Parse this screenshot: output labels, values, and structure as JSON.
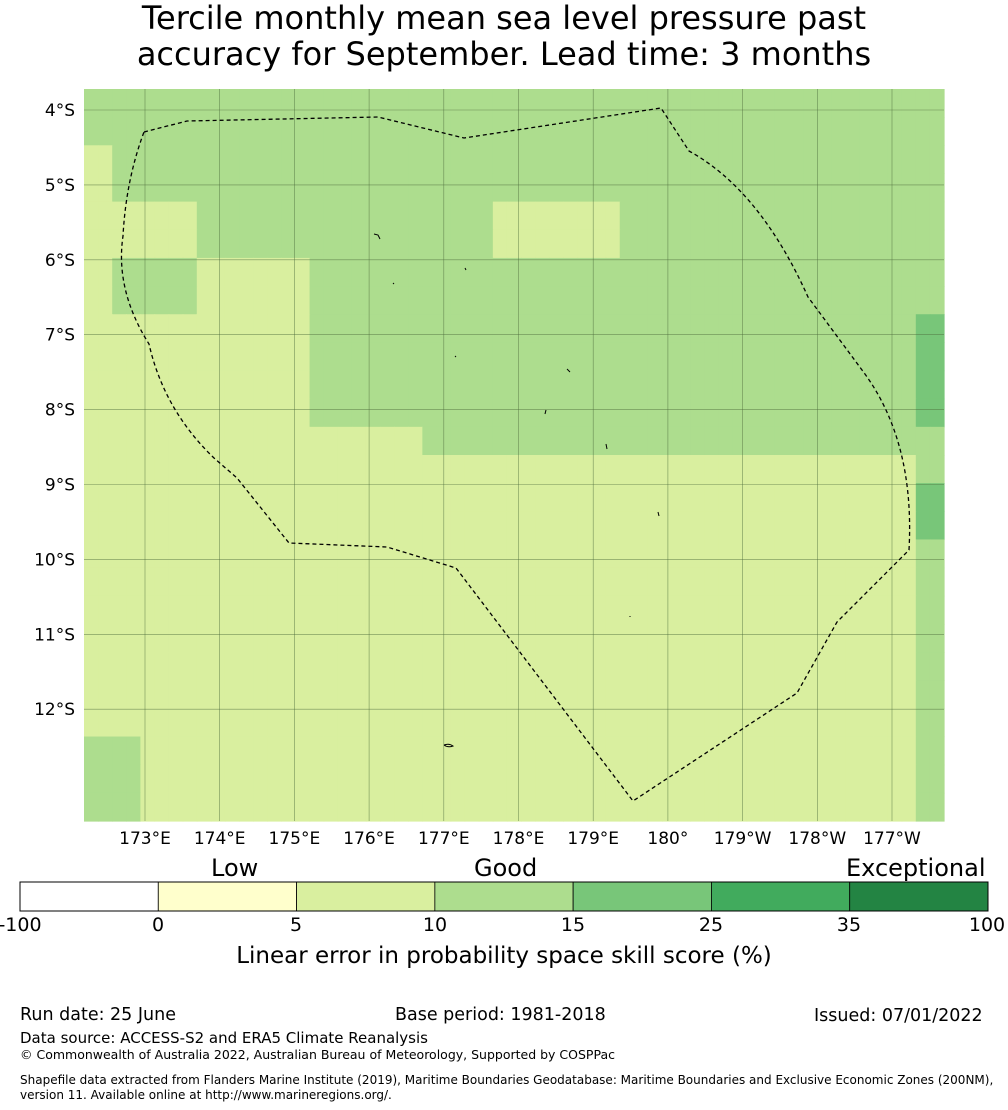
{
  "title_line1": "Tercile monthly mean sea level pressure past",
  "title_line2": "accuracy for September. Lead time: 3 months",
  "map": {
    "lat_labels": [
      "4°S",
      "5°S",
      "6°S",
      "7°S",
      "8°S",
      "9°S",
      "10°S",
      "11°S",
      "12°S"
    ],
    "lon_labels": [
      "173°E",
      "174°E",
      "175°E",
      "176°E",
      "177°E",
      "178°E",
      "179°E",
      "180°",
      "179°W",
      "178°W",
      "177°W"
    ],
    "boundary": "dashed",
    "cells": [
      [
        3,
        3,
        3,
        3,
        3,
        3,
        3,
        3,
        3,
        3,
        3,
        3,
        3,
        3,
        3,
        3,
        3,
        3,
        3,
        3,
        3,
        3,
        3,
        3,
        3,
        3,
        3,
        3,
        3,
        3,
        3,
        3,
        3,
        3,
        3,
        3,
        3,
        3,
        3,
        3,
        3,
        3,
        3,
        3,
        3,
        3,
        3,
        3,
        3,
        3,
        3,
        3,
        3,
        3,
        3,
        3,
        3,
        3,
        3,
        3,
        3
      ],
      [
        3,
        3,
        3,
        3,
        3,
        3,
        3,
        3,
        3,
        3,
        3,
        3,
        3,
        3,
        3,
        3,
        3,
        3,
        3,
        3,
        3,
        3,
        3,
        3,
        3,
        3,
        3,
        3,
        3,
        3,
        3,
        3,
        3,
        3,
        3,
        3,
        3,
        3,
        3,
        3,
        3,
        3,
        3,
        3,
        3,
        3,
        3,
        3,
        3,
        3,
        3,
        3,
        3,
        3,
        3,
        3,
        3,
        3,
        3,
        3,
        3
      ],
      [
        2,
        2,
        3,
        3,
        3,
        3,
        3,
        3,
        3,
        3,
        3,
        3,
        3,
        3,
        3,
        3,
        3,
        3,
        3,
        3,
        3,
        3,
        3,
        3,
        3,
        3,
        3,
        3,
        3,
        3,
        3,
        3,
        3,
        3,
        3,
        3,
        3,
        3,
        3,
        3,
        3,
        3,
        3,
        3,
        3,
        3,
        3,
        3,
        3,
        3,
        3,
        3,
        3,
        3,
        3,
        3,
        3,
        3,
        3,
        3,
        3
      ],
      [
        2,
        2,
        3,
        3,
        3,
        3,
        3,
        3,
        3,
        3,
        3,
        3,
        3,
        3,
        3,
        3,
        3,
        3,
        3,
        3,
        3,
        3,
        3,
        3,
        3,
        3,
        3,
        3,
        3,
        3,
        3,
        3,
        3,
        3,
        3,
        3,
        3,
        3,
        3,
        3,
        3,
        3,
        3,
        3,
        3,
        3,
        3,
        3,
        3,
        3,
        3,
        3,
        3,
        3,
        3,
        3,
        3,
        3,
        3,
        3,
        3
      ],
      [
        2,
        2,
        2,
        2,
        2,
        2,
        2,
        2,
        3,
        3,
        3,
        3,
        3,
        3,
        3,
        3,
        3,
        3,
        3,
        3,
        3,
        3,
        3,
        3,
        3,
        3,
        3,
        3,
        3,
        2,
        2,
        2,
        2,
        2,
        2,
        2,
        2,
        2,
        3,
        3,
        3,
        3,
        3,
        3,
        3,
        3,
        3,
        3,
        3,
        3,
        3,
        3,
        3,
        3,
        3,
        3,
        3,
        3,
        3,
        3,
        3
      ],
      [
        2,
        2,
        2,
        2,
        2,
        2,
        2,
        2,
        3,
        3,
        3,
        3,
        3,
        3,
        3,
        3,
        3,
        3,
        3,
        3,
        3,
        3,
        3,
        3,
        3,
        3,
        3,
        3,
        3,
        2,
        2,
        2,
        2,
        2,
        2,
        2,
        2,
        2,
        3,
        3,
        3,
        3,
        3,
        3,
        3,
        3,
        3,
        3,
        3,
        3,
        3,
        3,
        3,
        3,
        3,
        3,
        3,
        3,
        3,
        3,
        3
      ],
      [
        2,
        2,
        3,
        3,
        3,
        3,
        3,
        3,
        2,
        2,
        2,
        2,
        2,
        2,
        2,
        2,
        3,
        3,
        3,
        3,
        3,
        3,
        3,
        3,
        3,
        3,
        3,
        3,
        3,
        3,
        3,
        3,
        3,
        3,
        3,
        3,
        3,
        3,
        3,
        3,
        3,
        3,
        3,
        3,
        3,
        3,
        3,
        3,
        3,
        3,
        3,
        3,
        3,
        3,
        3,
        3,
        3,
        3,
        3,
        3,
        3
      ],
      [
        2,
        2,
        3,
        3,
        3,
        3,
        3,
        3,
        2,
        2,
        2,
        2,
        2,
        2,
        2,
        2,
        3,
        3,
        3,
        3,
        3,
        3,
        3,
        3,
        3,
        3,
        3,
        3,
        3,
        3,
        3,
        3,
        3,
        3,
        3,
        3,
        3,
        3,
        3,
        3,
        3,
        3,
        3,
        3,
        3,
        3,
        3,
        3,
        3,
        3,
        3,
        3,
        3,
        3,
        3,
        3,
        3,
        3,
        3,
        3,
        3
      ],
      [
        2,
        2,
        2,
        2,
        2,
        2,
        2,
        2,
        2,
        2,
        2,
        2,
        2,
        2,
        2,
        2,
        3,
        3,
        3,
        3,
        3,
        3,
        3,
        3,
        3,
        3,
        3,
        3,
        3,
        3,
        3,
        3,
        3,
        3,
        3,
        3,
        3,
        3,
        3,
        3,
        3,
        3,
        3,
        3,
        3,
        3,
        3,
        3,
        3,
        3,
        3,
        3,
        3,
        3,
        3,
        3,
        3,
        3,
        3,
        4,
        4
      ],
      [
        2,
        2,
        2,
        2,
        2,
        2,
        2,
        2,
        2,
        2,
        2,
        2,
        2,
        2,
        2,
        2,
        3,
        3,
        3,
        3,
        3,
        3,
        3,
        3,
        3,
        3,
        3,
        3,
        3,
        3,
        3,
        3,
        3,
        3,
        3,
        3,
        3,
        3,
        3,
        3,
        3,
        3,
        3,
        3,
        3,
        3,
        3,
        3,
        3,
        3,
        3,
        3,
        3,
        3,
        3,
        3,
        3,
        3,
        3,
        4,
        4
      ],
      [
        2,
        2,
        2,
        2,
        2,
        2,
        2,
        2,
        2,
        2,
        2,
        2,
        2,
        2,
        2,
        2,
        3,
        3,
        3,
        3,
        3,
        3,
        3,
        3,
        3,
        3,
        3,
        3,
        3,
        3,
        3,
        3,
        3,
        3,
        3,
        3,
        3,
        3,
        3,
        3,
        3,
        3,
        3,
        3,
        3,
        3,
        3,
        3,
        3,
        3,
        3,
        3,
        3,
        3,
        3,
        3,
        3,
        3,
        3,
        4,
        4
      ],
      [
        2,
        2,
        2,
        2,
        2,
        2,
        2,
        2,
        2,
        2,
        2,
        2,
        2,
        2,
        2,
        2,
        3,
        3,
        3,
        3,
        3,
        3,
        3,
        3,
        3,
        3,
        3,
        3,
        3,
        3,
        3,
        3,
        3,
        3,
        3,
        3,
        3,
        3,
        3,
        3,
        3,
        3,
        3,
        3,
        3,
        3,
        3,
        3,
        3,
        3,
        3,
        3,
        3,
        3,
        3,
        3,
        3,
        3,
        3,
        4,
        4
      ],
      [
        2,
        2,
        2,
        2,
        2,
        2,
        2,
        2,
        2,
        2,
        2,
        2,
        2,
        2,
        2,
        2,
        2,
        2,
        2,
        2,
        2,
        2,
        2,
        2,
        3,
        3,
        3,
        3,
        3,
        3,
        3,
        3,
        3,
        3,
        3,
        3,
        3,
        3,
        3,
        3,
        3,
        3,
        3,
        3,
        3,
        3,
        3,
        3,
        3,
        3,
        3,
        3,
        3,
        3,
        3,
        3,
        3,
        3,
        3,
        3,
        3
      ],
      [
        2,
        2,
        2,
        2,
        2,
        2,
        2,
        2,
        2,
        2,
        2,
        2,
        2,
        2,
        2,
        2,
        2,
        2,
        2,
        2,
        2,
        2,
        2,
        2,
        2,
        2,
        2,
        2,
        2,
        2,
        2,
        2,
        2,
        2,
        2,
        2,
        2,
        2,
        2,
        2,
        2,
        2,
        2,
        2,
        2,
        2,
        2,
        2,
        2,
        2,
        2,
        2,
        2,
        2,
        2,
        2,
        2,
        2,
        2,
        3,
        3
      ],
      [
        2,
        2,
        2,
        2,
        2,
        2,
        2,
        2,
        2,
        2,
        2,
        2,
        2,
        2,
        2,
        2,
        2,
        2,
        2,
        2,
        2,
        2,
        2,
        2,
        2,
        2,
        2,
        2,
        2,
        2,
        2,
        2,
        2,
        2,
        2,
        2,
        2,
        2,
        2,
        2,
        2,
        2,
        2,
        2,
        2,
        2,
        2,
        2,
        2,
        2,
        2,
        2,
        2,
        2,
        2,
        2,
        2,
        2,
        2,
        4,
        4
      ],
      [
        2,
        2,
        2,
        2,
        2,
        2,
        2,
        2,
        2,
        2,
        2,
        2,
        2,
        2,
        2,
        2,
        2,
        2,
        2,
        2,
        2,
        2,
        2,
        2,
        2,
        2,
        2,
        2,
        2,
        2,
        2,
        2,
        2,
        2,
        2,
        2,
        2,
        2,
        2,
        2,
        2,
        2,
        2,
        2,
        2,
        2,
        2,
        2,
        2,
        2,
        2,
        2,
        2,
        2,
        2,
        2,
        2,
        2,
        2,
        4,
        4
      ],
      [
        2,
        2,
        2,
        2,
        2,
        2,
        2,
        2,
        2,
        2,
        2,
        2,
        2,
        2,
        2,
        2,
        2,
        2,
        2,
        2,
        2,
        2,
        2,
        2,
        2,
        2,
        2,
        2,
        2,
        2,
        2,
        2,
        2,
        2,
        2,
        2,
        2,
        2,
        2,
        2,
        2,
        2,
        2,
        2,
        2,
        2,
        2,
        2,
        2,
        2,
        2,
        2,
        2,
        2,
        2,
        2,
        2,
        2,
        2,
        3,
        3
      ],
      [
        2,
        2,
        2,
        2,
        2,
        2,
        2,
        2,
        2,
        2,
        2,
        2,
        2,
        2,
        2,
        2,
        2,
        2,
        2,
        2,
        2,
        2,
        2,
        2,
        2,
        2,
        2,
        2,
        2,
        2,
        2,
        2,
        2,
        2,
        2,
        2,
        2,
        2,
        2,
        2,
        2,
        2,
        2,
        2,
        2,
        2,
        2,
        2,
        2,
        2,
        2,
        2,
        2,
        2,
        2,
        2,
        2,
        2,
        2,
        3,
        3
      ],
      [
        2,
        2,
        2,
        2,
        2,
        2,
        2,
        2,
        2,
        2,
        2,
        2,
        2,
        2,
        2,
        2,
        2,
        2,
        2,
        2,
        2,
        2,
        2,
        2,
        2,
        2,
        2,
        2,
        2,
        2,
        2,
        2,
        2,
        2,
        2,
        2,
        2,
        2,
        2,
        2,
        2,
        2,
        2,
        2,
        2,
        2,
        2,
        2,
        2,
        2,
        2,
        2,
        2,
        2,
        2,
        2,
        2,
        2,
        2,
        3,
        3
      ],
      [
        2,
        2,
        2,
        2,
        2,
        2,
        2,
        2,
        2,
        2,
        2,
        2,
        2,
        2,
        2,
        2,
        2,
        2,
        2,
        2,
        2,
        2,
        2,
        2,
        2,
        2,
        2,
        2,
        2,
        2,
        2,
        2,
        2,
        2,
        2,
        2,
        2,
        2,
        2,
        2,
        2,
        2,
        2,
        2,
        2,
        2,
        2,
        2,
        2,
        2,
        2,
        2,
        2,
        2,
        2,
        2,
        2,
        2,
        2,
        3,
        3
      ],
      [
        2,
        2,
        2,
        2,
        2,
        2,
        2,
        2,
        2,
        2,
        2,
        2,
        2,
        2,
        2,
        2,
        2,
        2,
        2,
        2,
        2,
        2,
        2,
        2,
        2,
        2,
        2,
        2,
        2,
        2,
        2,
        2,
        2,
        2,
        2,
        2,
        2,
        2,
        2,
        2,
        2,
        2,
        2,
        2,
        2,
        2,
        2,
        2,
        2,
        2,
        2,
        2,
        2,
        2,
        2,
        2,
        2,
        2,
        2,
        3,
        3
      ],
      [
        2,
        2,
        2,
        2,
        2,
        2,
        2,
        2,
        2,
        2,
        2,
        2,
        2,
        2,
        2,
        2,
        2,
        2,
        2,
        2,
        2,
        2,
        2,
        2,
        2,
        2,
        2,
        2,
        2,
        2,
        2,
        2,
        2,
        2,
        2,
        2,
        2,
        2,
        2,
        2,
        2,
        2,
        2,
        2,
        2,
        2,
        2,
        2,
        2,
        2,
        2,
        2,
        2,
        2,
        2,
        2,
        2,
        2,
        2,
        3,
        3
      ],
      [
        2,
        2,
        2,
        2,
        2,
        2,
        2,
        2,
        2,
        2,
        2,
        2,
        2,
        2,
        2,
        2,
        2,
        2,
        2,
        2,
        2,
        2,
        2,
        2,
        2,
        2,
        2,
        2,
        2,
        2,
        2,
        2,
        2,
        2,
        2,
        2,
        2,
        2,
        2,
        2,
        2,
        2,
        2,
        2,
        2,
        2,
        2,
        2,
        2,
        2,
        2,
        2,
        2,
        2,
        2,
        2,
        2,
        2,
        2,
        3,
        3
      ],
      [
        3,
        3,
        3,
        3,
        2,
        2,
        2,
        2,
        2,
        2,
        2,
        2,
        2,
        2,
        2,
        2,
        2,
        2,
        2,
        2,
        2,
        2,
        2,
        2,
        2,
        2,
        2,
        2,
        2,
        2,
        2,
        2,
        2,
        2,
        2,
        2,
        2,
        2,
        2,
        2,
        2,
        2,
        2,
        2,
        2,
        2,
        2,
        2,
        2,
        2,
        2,
        2,
        2,
        2,
        2,
        2,
        2,
        2,
        2,
        3,
        3
      ],
      [
        3,
        3,
        3,
        3,
        2,
        2,
        2,
        2,
        2,
        2,
        2,
        2,
        2,
        2,
        2,
        2,
        2,
        2,
        2,
        2,
        2,
        2,
        2,
        2,
        2,
        2,
        2,
        2,
        2,
        2,
        2,
        2,
        2,
        2,
        2,
        2,
        2,
        2,
        2,
        2,
        2,
        2,
        2,
        2,
        2,
        2,
        2,
        2,
        2,
        2,
        2,
        2,
        2,
        2,
        2,
        2,
        2,
        2,
        2,
        3,
        3
      ],
      [
        3,
        3,
        3,
        3,
        2,
        2,
        2,
        2,
        2,
        2,
        2,
        2,
        2,
        2,
        2,
        2,
        2,
        2,
        2,
        2,
        2,
        2,
        2,
        2,
        2,
        2,
        2,
        2,
        2,
        2,
        2,
        2,
        2,
        2,
        2,
        2,
        2,
        2,
        2,
        2,
        2,
        2,
        2,
        2,
        2,
        2,
        2,
        2,
        2,
        2,
        2,
        2,
        2,
        2,
        2,
        2,
        2,
        2,
        2,
        3,
        3
      ]
    ]
  },
  "colorbar": {
    "category_low": "Low",
    "category_good": "Good",
    "category_exceptional": "Exceptional",
    "ticks": [
      "-100",
      "0",
      "5",
      "10",
      "15",
      "25",
      "35",
      "100"
    ],
    "colors": [
      "#ffffff",
      "#ffffcc",
      "#d9ef9f",
      "#addd8e",
      "#78c679",
      "#41ab5d",
      "#238443"
    ],
    "axis_label": "Linear error in probability space skill score (%)"
  },
  "footer": {
    "run_date": "Run date: 25 June",
    "base_period": "Base period: 1981-2018",
    "issued": "Issued: 07/01/2022",
    "data_source": "Data source: ACCESS-S2 and ERA5 Climate Reanalysis",
    "copyright": "© Commonwealth of Australia 2022, Australian Bureau of Meteorology, Supported by COSPPac",
    "shapefile_line1": "Shapefile data extracted from Flanders Marine Institute (2019), Maritime Boundaries Geodatabase: Maritime Boundaries and Exclusive Economic Zones (200NM),",
    "shapefile_line2": "version 11. Available online at http://www.marineregions.org/."
  }
}
